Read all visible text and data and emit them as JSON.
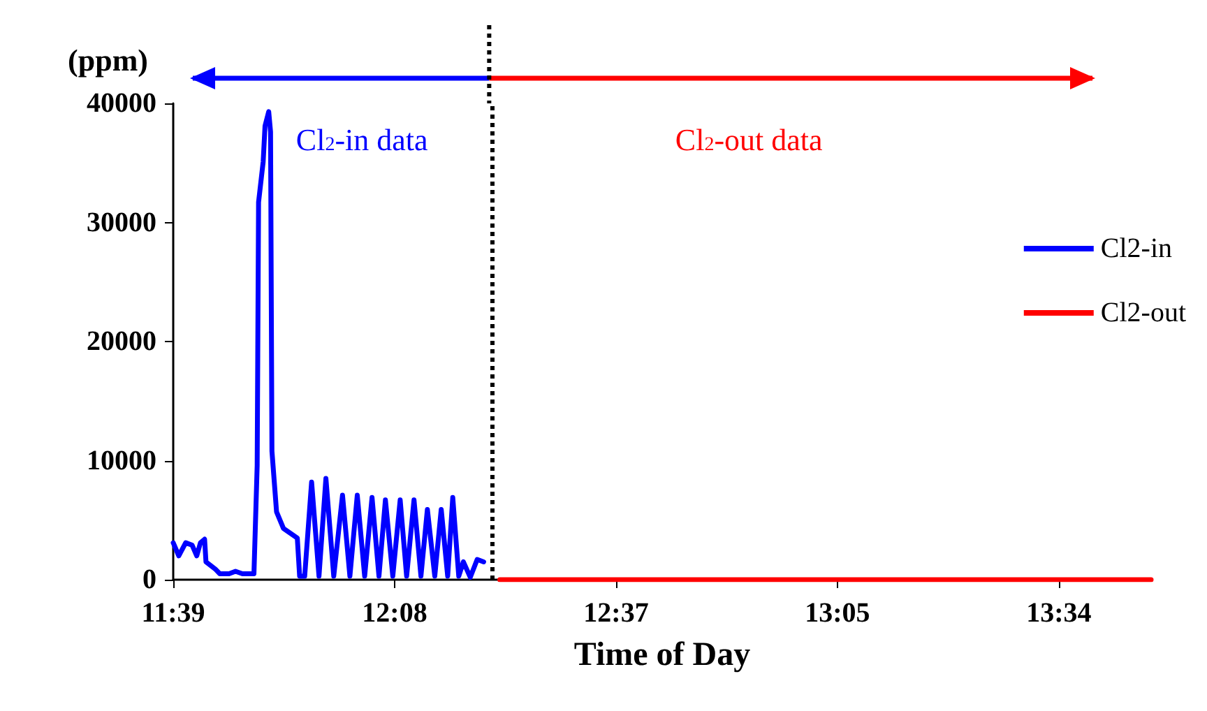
{
  "chart_data": {
    "type": "line",
    "xlabel": "Time of Day",
    "ylabel": "(ppm)",
    "xlim": [
      11.65,
      13.77
    ],
    "xticks": [
      {
        "value": 11.65,
        "label": "11:39"
      },
      {
        "value": 12.13,
        "label": "12:08"
      },
      {
        "value": 12.61,
        "label": "12:37"
      },
      {
        "value": 13.09,
        "label": "13:05"
      },
      {
        "value": 13.57,
        "label": "13:34"
      }
    ],
    "ylim": [
      0,
      40000
    ],
    "yticks": [
      0,
      10000,
      20000,
      30000,
      40000
    ],
    "grid": false,
    "legend": "right",
    "marker": "none",
    "line_style": "solid",
    "series": [
      {
        "name": "Cl2-in",
        "color": "#0000ff",
        "x": [
          11.65,
          11.662,
          11.677,
          11.691,
          11.701,
          11.709,
          11.718,
          11.721,
          11.741,
          11.751,
          11.771,
          11.785,
          11.8,
          11.825,
          11.832,
          11.835,
          11.845,
          11.849,
          11.857,
          11.861,
          11.864,
          11.874,
          11.889,
          11.919,
          11.924,
          11.935,
          11.95,
          11.966,
          11.981,
          11.998,
          12.017,
          12.033,
          12.049,
          12.065,
          12.081,
          12.096,
          12.11,
          12.126,
          12.142,
          12.156,
          12.172,
          12.187,
          12.201,
          12.217,
          12.231,
          12.245,
          12.256,
          12.269,
          12.279,
          12.294,
          12.309,
          12.323
        ],
        "values": [
          3100,
          2000,
          3100,
          2900,
          2000,
          3100,
          3400,
          1500,
          900,
          500,
          500,
          700,
          500,
          500,
          9600,
          31700,
          35100,
          38100,
          39300,
          37600,
          10800,
          5700,
          4300,
          3500,
          300,
          300,
          8200,
          300,
          8500,
          300,
          7100,
          300,
          7100,
          300,
          6900,
          300,
          6700,
          300,
          6700,
          300,
          6700,
          300,
          5900,
          300,
          5900,
          300,
          6900,
          300,
          1500,
          200,
          1700,
          1500
        ]
      },
      {
        "name": "Cl2-out",
        "color": "#ff0000",
        "x": [
          12.358,
          13.77
        ],
        "values": [
          0,
          0
        ]
      }
    ],
    "ref_lines": [
      {
        "axis": "x",
        "value": 12.335,
        "color": "#000000",
        "line_style": "dotted"
      }
    ],
    "annotations": [
      "Cl$_{2}$-in data",
      "Cl$_{2}$-out data"
    ]
  }
}
